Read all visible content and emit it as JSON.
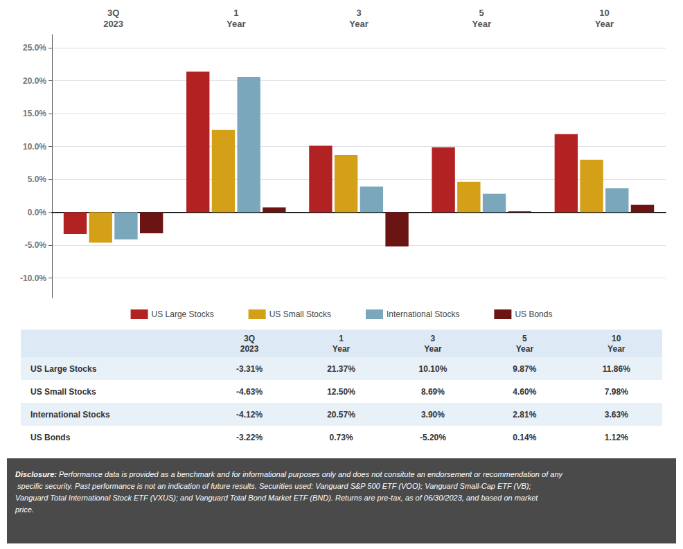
{
  "chart_data": {
    "type": "bar",
    "categories": [
      "3Q\n2023",
      "1\nYear",
      "3\nYear",
      "5\nYear",
      "10\nYear"
    ],
    "series": [
      {
        "name": "US Large Stocks",
        "color": "#B22222",
        "values": [
          -3.31,
          21.37,
          10.1,
          9.87,
          11.86
        ],
        "value_labels": [
          "-3.31%",
          "21.37%",
          "10.10%",
          "9.87%",
          "11.86%"
        ]
      },
      {
        "name": "US Small Stocks",
        "color": "#D4A017",
        "values": [
          -4.63,
          12.5,
          8.69,
          4.6,
          7.98
        ],
        "value_labels": [
          "-4.63%",
          "12.50%",
          "8.69%",
          "4.60%",
          "7.98%"
        ]
      },
      {
        "name": "International Stocks",
        "color": "#7BA7BC",
        "values": [
          -4.12,
          20.57,
          3.9,
          2.81,
          3.63
        ],
        "value_labels": [
          "-4.12%",
          "20.57%",
          "3.90%",
          "2.81%",
          "3.63%"
        ]
      },
      {
        "name": "US Bonds",
        "color": "#6B1414",
        "values": [
          -3.22,
          0.73,
          -5.2,
          0.14,
          1.12
        ],
        "value_labels": [
          "-3.22%",
          "0.73%",
          "-5.20%",
          "0.14%",
          "1.12%"
        ]
      }
    ],
    "ylim": [
      -13,
      27
    ],
    "yticks": [
      {
        "value": -10,
        "label": "-10.0%"
      },
      {
        "value": -5,
        "label": "-5.0%"
      },
      {
        "value": 0,
        "label": "0.0%"
      },
      {
        "value": 5,
        "label": "5.0%"
      },
      {
        "value": 10,
        "label": "10.0%"
      },
      {
        "value": 15,
        "label": "15.0%"
      },
      {
        "value": 20,
        "label": "20.0%"
      },
      {
        "value": 25,
        "label": "25.0%"
      }
    ],
    "grid": true,
    "legend": "bottom",
    "annotations": [
      "Disclosure: Performance data is provided as a benchmark and for informational purposes only and does not consitute an endorsement or recommendation of any specific security. Past performance is not an indication of future results. Securities used: Vanguard S&P 500 ETF (VOO); Vanguard Small-Cap ETF (VB); Vanguard Total International Stock ETF (VXUS); and Vanguard Total Bond Market ETF (BND). Returns are pre-tax, as of 06/30/2023, and based on market price."
    ]
  }
}
